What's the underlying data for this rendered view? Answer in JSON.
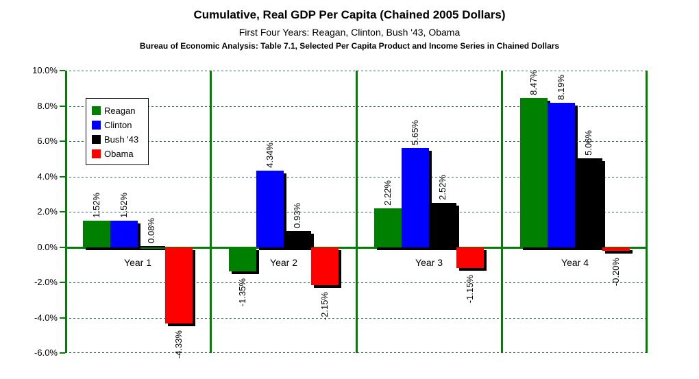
{
  "header": {
    "title": "Cumulative, Real GDP Per Capita (Chained 2005 Dollars)",
    "subtitle": "First Four Years: Reagan, Clinton, Bush '43, Obama",
    "source_note": "Bureau of Economic Analysis: Table 7.1, Selected Per Capita Product and Income Series in Chained Dollars"
  },
  "colors": {
    "axis_green": "#008000",
    "gridline_green": "#2e6e4e",
    "bar_shadow": "#000000",
    "background": "#ffffff",
    "text": "#000000"
  },
  "chart_data": {
    "type": "bar",
    "title": "Cumulative, Real GDP Per Capita (Chained 2005 Dollars)",
    "subtitle": "First Four Years: Reagan, Clinton, Bush '43, Obama",
    "source_note": "Bureau of Economic Analysis: Table 7.1, Selected Per Capita Product and Income Series in Chained Dollars",
    "categories": [
      "Year 1",
      "Year 2",
      "Year 3",
      "Year 4"
    ],
    "series": [
      {
        "name": "Reagan",
        "color": "#008000",
        "values": [
          1.52,
          -1.35,
          2.22,
          8.47
        ],
        "data_labels": [
          "1.52%",
          "-1.35%",
          "2.22%",
          "8.47%"
        ]
      },
      {
        "name": "Clinton",
        "color": "#0000ff",
        "values": [
          1.52,
          4.34,
          5.65,
          8.19
        ],
        "data_labels": [
          "1.52%",
          "4.34%",
          "5.65%",
          "8.19%"
        ]
      },
      {
        "name": "Bush '43",
        "color": "#000000",
        "values": [
          0.08,
          0.93,
          2.52,
          5.06
        ],
        "data_labels": [
          "0.08%",
          "0.93%",
          "2.52%",
          "5.06%"
        ]
      },
      {
        "name": "Obama",
        "color": "#ff0000",
        "values": [
          -4.33,
          -2.15,
          -1.15,
          -0.2
        ],
        "data_labels": [
          "-4.33%",
          "-2.15%",
          "-1.15%",
          "-0.20%"
        ]
      }
    ],
    "ylim": [
      -6,
      10
    ],
    "ytick_step": 2,
    "ytick_labels": [
      "10.0%",
      "8.0%",
      "6.0%",
      "4.0%",
      "2.0%",
      "0.0%",
      "-2.0%",
      "-4.0%",
      "-6.0%"
    ],
    "grid": "horizontal dashed green lines every 2%, solid green zero line, solid green vertical category separators",
    "legend_position": "inside-top-left",
    "legend_entries": [
      "Reagan",
      "Clinton",
      "Bush '43",
      "Obama"
    ],
    "bar_effect": "black drop shadow offset lower-right",
    "data_label_rotation": "90deg (reads bottom to top)"
  }
}
